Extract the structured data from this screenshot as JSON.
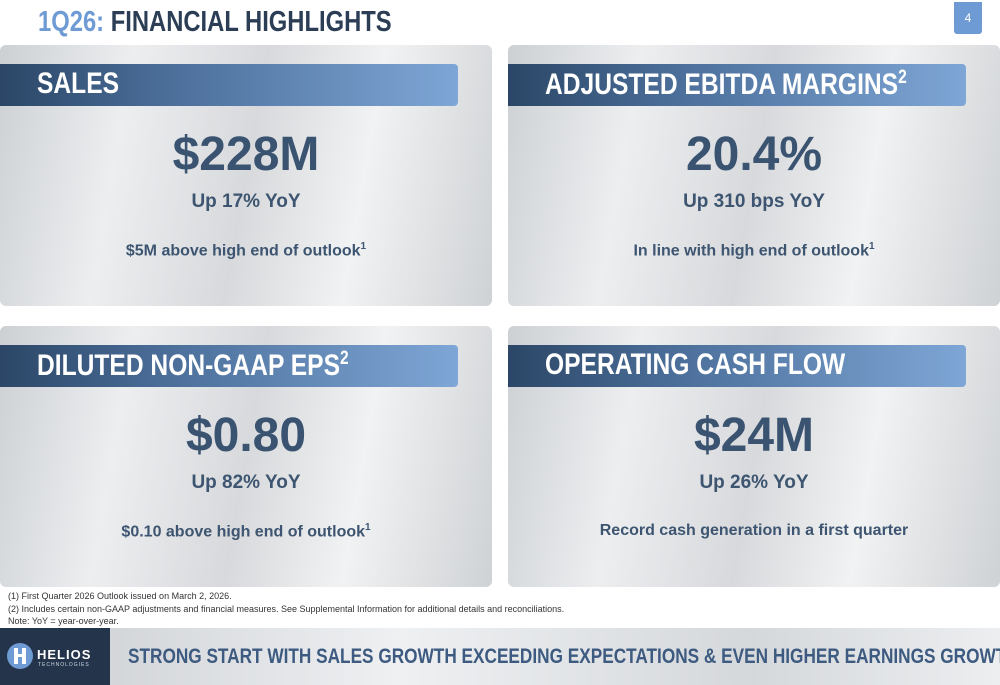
{
  "header": {
    "title_prefix": "1Q26:",
    "title": "FINANCIAL HIGHLIGHTS",
    "page_number": "4"
  },
  "cards": [
    {
      "title": "SALES",
      "value": "$228M",
      "subtitle": "Up 17% YoY",
      "note": "$5M above high end of outlook",
      "note_ref": "1"
    },
    {
      "title": "ADJUSTED EBITDA MARGINS",
      "title_ref": "2",
      "value": "20.4%",
      "subtitle": "Up 310 bps YoY",
      "note": "In line with high end of outlook",
      "note_ref": "1"
    },
    {
      "title": "DILUTED NON-GAAP EPS",
      "title_ref": "2",
      "value": "$0.80",
      "subtitle": "Up 82% YoY",
      "note": "$0.10 above high end of outlook",
      "note_ref": "1"
    },
    {
      "title": "OPERATING CASH FLOW",
      "value": "$24M",
      "subtitle": "Up 26% YoY",
      "note": "Record cash generation in a first quarter"
    }
  ],
  "footnotes": [
    "(1)   First Quarter 2026 Outlook issued on March 2, 2026.",
    "(2)   Includes certain non-GAAP adjustments and financial measures. See Supplemental Information for additional details and reconciliations.",
    "Note: YoY = year-over-year."
  ],
  "footer": {
    "logo": "HELIOS",
    "logo_sub": "TECHNOLOGIES",
    "tagline": "STRONG START WITH SALES GROWTH EXCEEDING EXPECTATIONS & EVEN HIGHER EARNINGS GROWTH"
  }
}
